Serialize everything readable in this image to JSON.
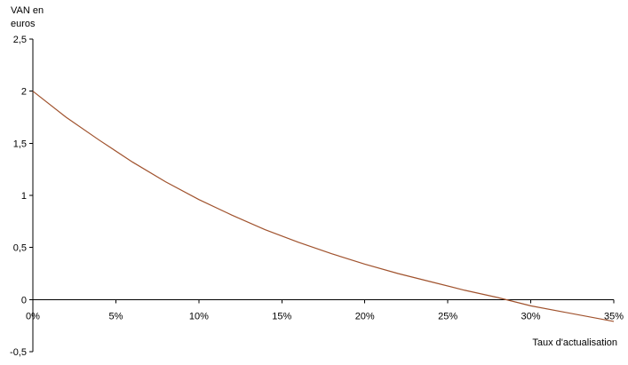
{
  "chart_data": {
    "type": "line",
    "ylabel_lines": [
      "VAN en",
      "euros"
    ],
    "xlabel": "Taux d'actualisation",
    "x_ticks": [
      {
        "value": 0,
        "label": "0%"
      },
      {
        "value": 5,
        "label": "5%"
      },
      {
        "value": 10,
        "label": "10%"
      },
      {
        "value": 15,
        "label": "15%"
      },
      {
        "value": 20,
        "label": "20%"
      },
      {
        "value": 25,
        "label": "25%"
      },
      {
        "value": 30,
        "label": "30%"
      },
      {
        "value": 35,
        "label": "35%"
      }
    ],
    "y_ticks": [
      {
        "value": 2.5,
        "label": "2,5"
      },
      {
        "value": 2,
        "label": "2"
      },
      {
        "value": 1.5,
        "label": "1,5"
      },
      {
        "value": 1,
        "label": "1"
      },
      {
        "value": 0.5,
        "label": "0,5"
      },
      {
        "value": 0,
        "label": "0"
      },
      {
        "value": -0.5,
        "label": "-0,5"
      }
    ],
    "xlim": [
      0,
      35
    ],
    "ylim": [
      -0.5,
      2.5
    ],
    "grid": false,
    "series": [
      {
        "color": "#A0522D",
        "x": [
          0,
          2,
          4,
          6,
          8,
          10,
          12,
          14,
          16,
          18,
          20,
          22,
          24,
          26,
          28,
          30,
          32,
          35
        ],
        "values": [
          2.0,
          1.75,
          1.53,
          1.32,
          1.13,
          0.96,
          0.81,
          0.67,
          0.55,
          0.44,
          0.34,
          0.25,
          0.17,
          0.09,
          0.02,
          -0.06,
          -0.12,
          -0.21
        ]
      }
    ]
  }
}
